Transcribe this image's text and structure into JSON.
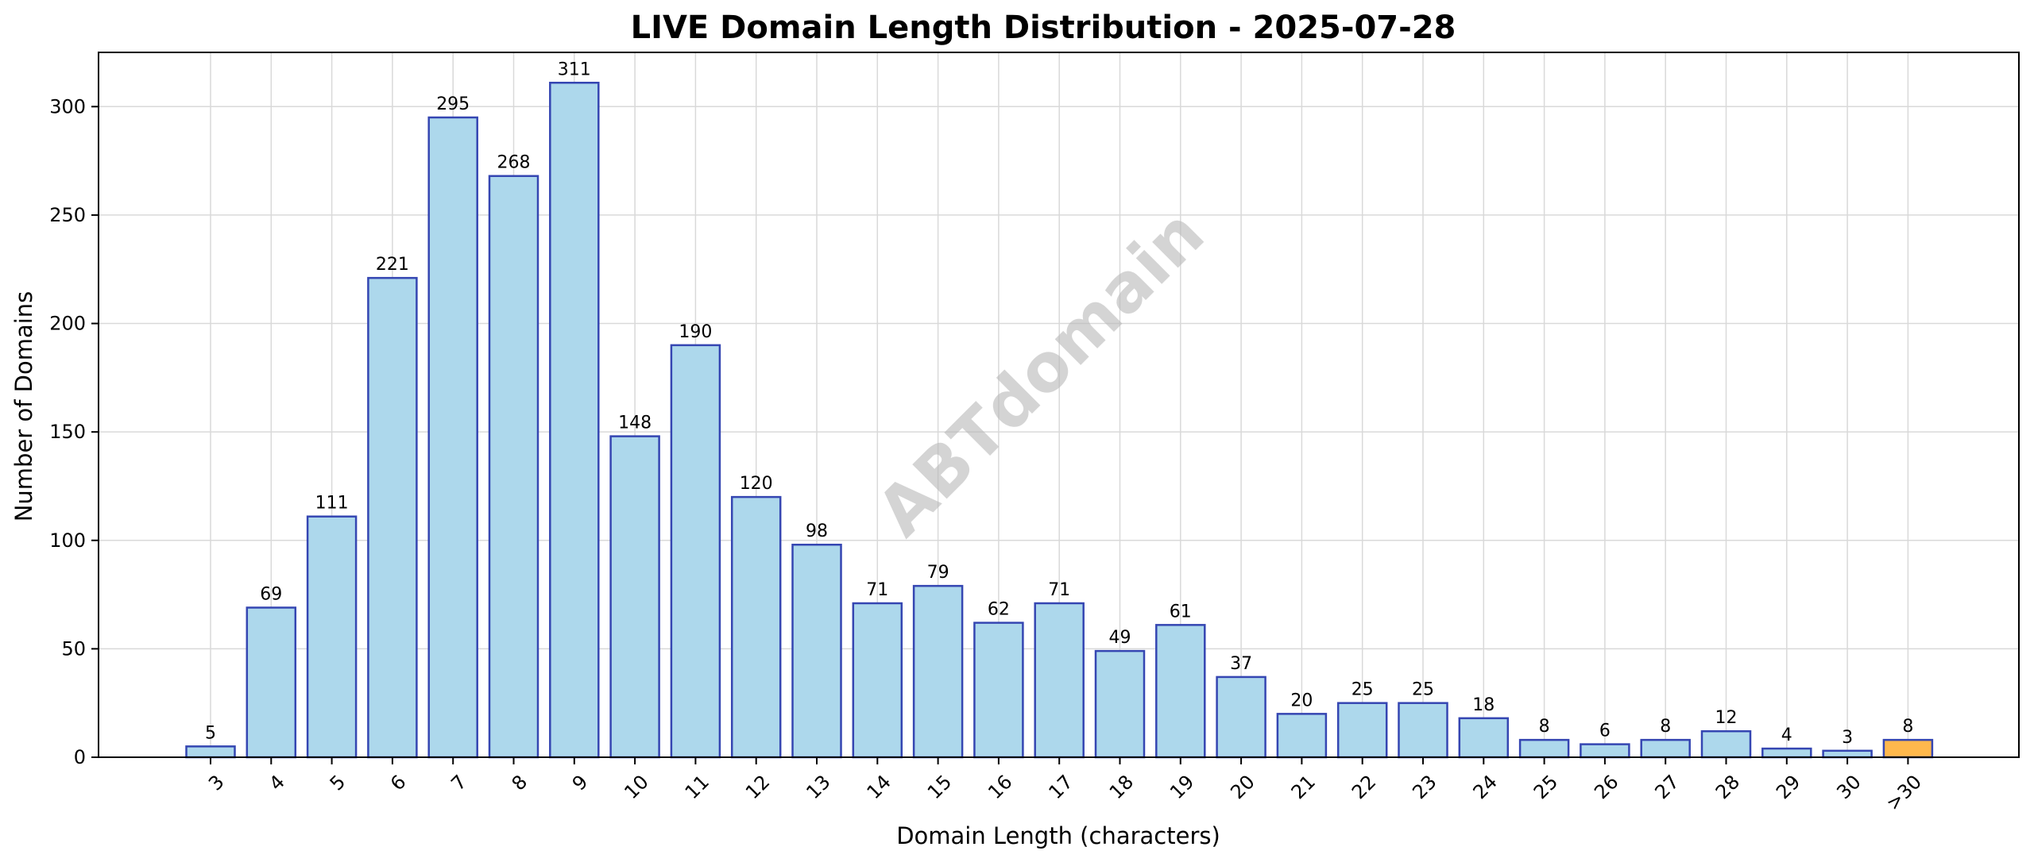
{
  "chart_data": {
    "type": "bar",
    "title": "LIVE Domain Length Distribution - 2025-07-28",
    "xlabel": "Domain Length (characters)",
    "ylabel": "Number of Domains",
    "categories": [
      "3",
      "4",
      "5",
      "6",
      "7",
      "8",
      "9",
      "10",
      "11",
      "12",
      "13",
      "14",
      "15",
      "16",
      "17",
      "18",
      "19",
      "20",
      "21",
      "22",
      "23",
      "24",
      "25",
      "26",
      "27",
      "28",
      "29",
      "30",
      ">30"
    ],
    "values": [
      5,
      69,
      111,
      221,
      295,
      268,
      311,
      148,
      190,
      120,
      98,
      71,
      79,
      62,
      71,
      49,
      61,
      37,
      20,
      25,
      25,
      18,
      8,
      6,
      8,
      12,
      4,
      3,
      8
    ],
    "ylim": [
      0,
      325
    ],
    "yticks": [
      0,
      50,
      100,
      150,
      200,
      250,
      300
    ],
    "grid": true,
    "watermark": "ABTdomain",
    "colors": {
      "bar_fill": "#add8ec",
      "bar_edge": "#3546b2",
      "highlight_fill": "#ffb84d",
      "highlight_category": ">30"
    }
  }
}
